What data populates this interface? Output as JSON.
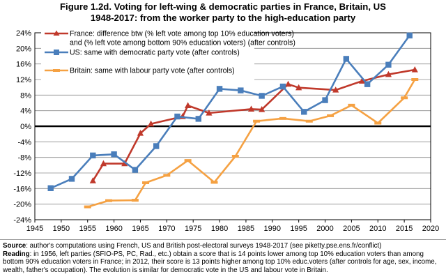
{
  "chart_data": {
    "type": "line",
    "title_line1": "Figure 1.2d. Voting for left-wing & democratic parties in France, Britain, US",
    "title_line2": "1948-2017: from the worker party to the high-education party",
    "xlim": [
      1945,
      2020
    ],
    "ylim": [
      -24,
      24
    ],
    "x_ticks": [
      1945,
      1950,
      1955,
      1960,
      1965,
      1970,
      1975,
      1980,
      1985,
      1990,
      1995,
      2000,
      2005,
      2010,
      2015,
      2020
    ],
    "y_ticks": [
      -24,
      -20,
      -16,
      -12,
      -8,
      -4,
      0,
      4,
      8,
      12,
      16,
      20,
      24
    ],
    "y_tick_labels": [
      "-24%",
      "-20%",
      "-16%",
      "-12%",
      "-8%",
      "-4%",
      "0%",
      "4%",
      "8%",
      "12%",
      "16%",
      "20%",
      "24%"
    ],
    "series": [
      {
        "key": "france",
        "name_line1": "France: difference btw (% left vote among top 10% education voters)",
        "name_line2": "and (% left vote among bottom 90% education voters) (after controls)",
        "color": "#c0392b",
        "marker": "triangle",
        "x": [
          1956,
          1958,
          1962,
          1965,
          1967,
          1973,
          1974,
          1978,
          1986,
          1988,
          1993,
          1995,
          2002,
          2007,
          2012,
          2017
        ],
        "y": [
          -14,
          -9.6,
          -9.6,
          -1.8,
          0.6,
          2.5,
          5.3,
          3.4,
          4.4,
          4.3,
          10.8,
          9.9,
          9.3,
          11.6,
          13.3,
          14.5
        ]
      },
      {
        "key": "us",
        "name_line1": "US: same with democratic party vote (after controls)",
        "color": "#4a7ebb",
        "marker": "square",
        "x": [
          1948,
          1952,
          1956,
          1960,
          1964,
          1968,
          1972,
          1976,
          1980,
          1984,
          1988,
          1992,
          1996,
          2000,
          2004,
          2008,
          2012,
          2016
        ],
        "y": [
          -15.9,
          -13.5,
          -7.5,
          -7.2,
          -11.2,
          -5.1,
          2.5,
          1.9,
          9.6,
          9.2,
          7.8,
          10.2,
          3.7,
          6.7,
          17.3,
          10.8,
          15.8,
          23.3
        ]
      },
      {
        "key": "britain",
        "name_line1": "Britain: same with labour party vote (after controls)",
        "color": "#f5a142",
        "marker": "dash",
        "x": [
          1955,
          1959,
          1964,
          1966,
          1970,
          1974,
          1979,
          1983,
          1987,
          1992,
          1997,
          2001,
          2005,
          2010,
          2015,
          2017
        ],
        "y": [
          -20.7,
          -19.1,
          -19,
          -14.5,
          -12.6,
          -8.8,
          -14.4,
          -7.7,
          1.3,
          2,
          1.3,
          2.7,
          5.4,
          0.8,
          7.3,
          12
        ]
      }
    ]
  },
  "caption": {
    "source_label": "Source",
    "source_text": ": author's computations using French, US and British post-electoral surveys 1948-2017 (see piketty.pse.ens.fr/conflict)",
    "reading_label": "Reading",
    "reading_text": ": in 1956, left parties (SFIO-PS, PC, Rad., etc.) obtain a score that is 14 points lower among top 10% education voters than among bottom 90% education voters in France; in 2012, their score is 13 points higher among top 10% educ.voters (after controls for age, sex, income, wealth, father's occupation). The evolution is similar for democratic vote in the US and labour vote in Britain."
  }
}
